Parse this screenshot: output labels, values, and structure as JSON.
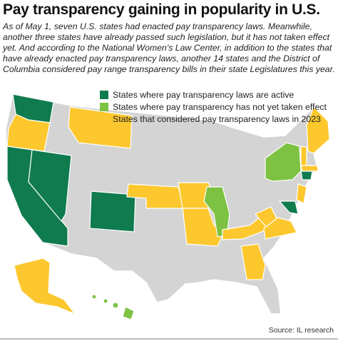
{
  "header": {
    "title": "Pay transparency gaining in popularity in U.S."
  },
  "intro": "As of May 1, seven U.S. states had enacted pay transparency laws. Meanwhile, another three states have already passed such legislation, but it has not taken effect yet. And according to the National Women's Law Center, in addition to the states that have already enacted pay transparency laws, another 14 states and the District of Columbia considered pay range transparency bills in their state Legislatures this year.",
  "legend": [
    {
      "label": "States where pay transparency laws are active",
      "color": "#0f7b4f"
    },
    {
      "label": "States where pay transparency has not yet taken effect",
      "color": "#7dc242"
    },
    {
      "label": "States that considered pay transparency laws in 2023",
      "color": "#fcc82e"
    }
  ],
  "source": "Source: IL research"
}
